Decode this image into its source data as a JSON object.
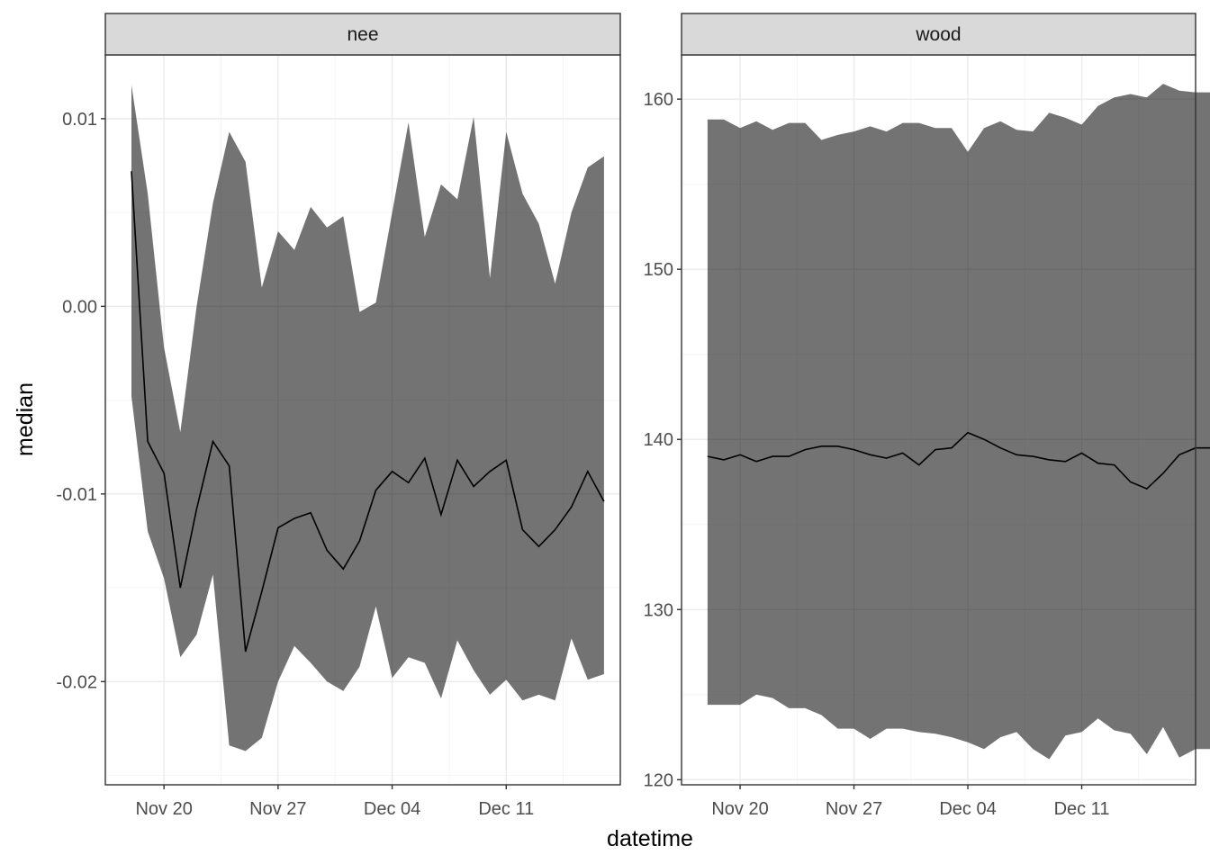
{
  "chart_data": {
    "type": "area",
    "xlabel": "datetime",
    "ylabel": "median",
    "x_ticks": [
      "Nov 20",
      "Nov 27",
      "Dec 04",
      "Dec 11"
    ],
    "x_tick_days": [
      19,
      26,
      33,
      40
    ],
    "grid": true,
    "colors": {
      "band": "#000000",
      "band_opacity": 0.55,
      "line": "#000000",
      "strip_fill": "#d9d9d9",
      "grid_major": "#ebebeb",
      "grid_minor": "#f5f5f5"
    },
    "panels": [
      {
        "strip": "nee",
        "ylim": [
          -0.0255,
          0.0134
        ],
        "y_ticks": [
          "0.01",
          "0.00",
          "-0.01",
          "-0.02"
        ],
        "y_tick_values": [
          0.01,
          0.0,
          -0.01,
          -0.02
        ],
        "x": [
          "Nov 17",
          "Nov 18",
          "Nov 19",
          "Nov 20",
          "Nov 21",
          "Nov 22",
          "Nov 23",
          "Nov 24",
          "Nov 25",
          "Nov 26",
          "Nov 27",
          "Nov 28",
          "Nov 29",
          "Nov 30",
          "Dec 01",
          "Dec 02",
          "Dec 03",
          "Dec 04",
          "Dec 05",
          "Dec 06",
          "Dec 07",
          "Dec 08",
          "Dec 09",
          "Dec 10",
          "Dec 11",
          "Dec 12",
          "Dec 13",
          "Dec 14",
          "Dec 15",
          "Dec 16"
        ],
        "series": [
          {
            "name": "median",
            "values": [
              0.0072,
              -0.0072,
              -0.0089,
              -0.015,
              -0.0108,
              -0.0072,
              -0.0085,
              -0.0184,
              -0.0152,
              -0.0118,
              -0.0113,
              -0.011,
              -0.013,
              -0.014,
              -0.0125,
              -0.0098,
              -0.0088,
              -0.0094,
              -0.0081,
              -0.0111,
              -0.0082,
              -0.0096,
              -0.0088,
              -0.0082,
              -0.0119,
              -0.0128,
              -0.0119,
              -0.0107,
              -0.0088,
              -0.0104
            ]
          },
          {
            "name": "upper",
            "values": [
              0.0118,
              0.006,
              -0.0022,
              -0.0067,
              0.0,
              0.0055,
              0.0093,
              0.0077,
              0.001,
              0.004,
              0.003,
              0.0053,
              0.0042,
              0.0048,
              -0.0003,
              0.0002,
              0.005,
              0.0098,
              0.0037,
              0.0065,
              0.0057,
              0.0101,
              0.0015,
              0.0093,
              0.006,
              0.0044,
              0.0012,
              0.005,
              0.0074,
              0.008
            ]
          },
          {
            "name": "lower",
            "values": [
              -0.0048,
              -0.012,
              -0.0145,
              -0.0187,
              -0.0175,
              -0.0143,
              -0.0234,
              -0.0237,
              -0.023,
              -0.02,
              -0.0181,
              -0.019,
              -0.02,
              -0.0205,
              -0.0192,
              -0.016,
              -0.0198,
              -0.0187,
              -0.019,
              -0.0209,
              -0.0178,
              -0.0194,
              -0.0207,
              -0.0199,
              -0.021,
              -0.0207,
              -0.021,
              -0.0177,
              -0.0199,
              -0.0196
            ]
          }
        ]
      },
      {
        "strip": "wood",
        "ylim": [
          119.7,
          162.6
        ],
        "y_ticks": [
          "160",
          "150",
          "140",
          "130",
          "120"
        ],
        "y_tick_values": [
          160,
          150,
          140,
          130,
          120
        ],
        "x": [
          "Nov 17",
          "Nov 18",
          "Nov 19",
          "Nov 20",
          "Nov 21",
          "Nov 22",
          "Nov 23",
          "Nov 24",
          "Nov 25",
          "Nov 26",
          "Nov 27",
          "Nov 28",
          "Nov 29",
          "Nov 30",
          "Dec 01",
          "Dec 02",
          "Dec 03",
          "Dec 04",
          "Dec 05",
          "Dec 06",
          "Dec 07",
          "Dec 08",
          "Dec 09",
          "Dec 10",
          "Dec 11",
          "Dec 12",
          "Dec 13",
          "Dec 14",
          "Dec 15",
          "Dec 16",
          "Dec 17",
          "Dec 18",
          "Dec 19"
        ],
        "series": [
          {
            "name": "median",
            "values": [
              139.0,
              138.8,
              139.1,
              138.7,
              139.0,
              139.0,
              139.4,
              139.6,
              139.6,
              139.4,
              139.1,
              138.9,
              139.2,
              138.5,
              139.4,
              139.5,
              140.4,
              140.0,
              139.5,
              139.1,
              139.0,
              138.8,
              138.7,
              139.2,
              138.6,
              138.5,
              137.5,
              137.1,
              138.0,
              139.1,
              139.5,
              139.5,
              139.5
            ]
          },
          {
            "name": "upper",
            "values": [
              158.8,
              158.8,
              158.3,
              158.7,
              158.2,
              158.6,
              158.6,
              157.6,
              157.9,
              158.1,
              158.4,
              158.1,
              158.6,
              158.6,
              158.3,
              158.3,
              156.9,
              158.3,
              158.7,
              158.2,
              158.1,
              159.2,
              158.9,
              158.5,
              159.6,
              160.1,
              160.3,
              160.1,
              160.9,
              160.5,
              160.4,
              160.4,
              160.4
            ]
          },
          {
            "name": "lower",
            "values": [
              124.4,
              124.4,
              124.4,
              125.0,
              124.8,
              124.2,
              124.2,
              123.8,
              123.0,
              123.0,
              122.4,
              123.0,
              123.0,
              122.8,
              122.7,
              122.5,
              122.2,
              121.8,
              122.5,
              122.8,
              121.8,
              121.2,
              122.6,
              122.8,
              123.6,
              122.9,
              122.7,
              121.5,
              123.1,
              121.3,
              121.8,
              121.8,
              121.8
            ]
          }
        ]
      }
    ]
  }
}
